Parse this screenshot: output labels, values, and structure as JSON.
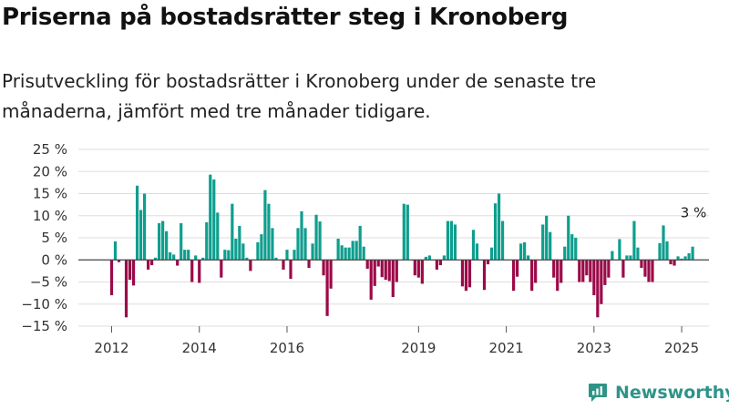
{
  "title": "Priserna på bostadsrätter steg i Kronoberg",
  "subtitle": "Prisutveckling för bostadsrätter i Kronoberg under de senaste tre månaderna, jämfört med tre månader tidigare.",
  "brand": "Newsworthy",
  "colors": {
    "positive": "#0e9e8e",
    "negative": "#9b0a48",
    "brand": "#2e9488",
    "grid": "#dddddd"
  },
  "chart_data": {
    "type": "bar",
    "x_start": "2012-01",
    "x_interval": "month",
    "ylim": [
      -15,
      25
    ],
    "yticks": [
      "25 %",
      "20 %",
      "15 %",
      "10 %",
      "5 %",
      "0 %",
      "−5 %",
      "−10 %",
      "−15 %"
    ],
    "xticks": [
      {
        "label": "2012",
        "month_index": 0
      },
      {
        "label": "2014",
        "month_index": 24
      },
      {
        "label": "2016",
        "month_index": 48
      },
      {
        "label": "2019",
        "month_index": 84
      },
      {
        "label": "2021",
        "month_index": 108
      },
      {
        "label": "2023",
        "month_index": 132
      },
      {
        "label": "2025",
        "month_index": 156
      }
    ],
    "values": [
      -8,
      4.2,
      -0.5,
      0,
      -13,
      -4.5,
      -5.8,
      16.8,
      11.3,
      15,
      -2.2,
      -1.2,
      0.5,
      8.3,
      8.8,
      6.5,
      1.7,
      1.2,
      -1.3,
      8.3,
      2.3,
      2.3,
      -5,
      1,
      -5.2,
      0.5,
      8.5,
      19.3,
      18.2,
      10.7,
      -4,
      2.3,
      2.2,
      12.7,
      4.8,
      7.7,
      3.7,
      0.5,
      -2.5,
      0,
      4,
      5.8,
      15.8,
      12.7,
      7.2,
      0.5,
      0,
      -2.2,
      2.3,
      -4.3,
      2.3,
      7.2,
      11,
      7.2,
      -1.8,
      3.7,
      10.2,
      8.7,
      -3.5,
      -12.7,
      -6.5,
      0,
      4.8,
      3.3,
      2.8,
      2.8,
      4.3,
      4.3,
      7.7,
      3,
      -2,
      -9,
      -5.9,
      -1.5,
      -3.9,
      -4.5,
      -4.8,
      -8.4,
      -5,
      0,
      12.7,
      12.5,
      0,
      -3.5,
      -4,
      -5.4,
      0.7,
      1,
      0,
      -2.2,
      -1.2,
      1,
      8.8,
      8.8,
      8,
      0,
      -6,
      -7,
      -6.2,
      6.8,
      3.7,
      0,
      -6.8,
      -1,
      2.8,
      12.8,
      15,
      8.8,
      0,
      0,
      -7,
      -3.8,
      3.7,
      4,
      1,
      -7,
      -5.2,
      0,
      8,
      10,
      6.3,
      -4,
      -7,
      -5.2,
      3,
      10,
      5.8,
      5,
      -5,
      -5,
      -3.5,
      -5,
      -8,
      -13,
      -10,
      -5.7,
      -4,
      2,
      0,
      4.7,
      -4,
      1,
      1,
      8.8,
      2.8,
      -1.8,
      -3.8,
      -5,
      -5,
      0,
      3.8,
      7.8,
      4.2,
      -1,
      -1.3,
      0.8,
      0.3,
      0.8,
      1.5,
      3
    ],
    "annotation": {
      "label": "3 %"
    }
  }
}
